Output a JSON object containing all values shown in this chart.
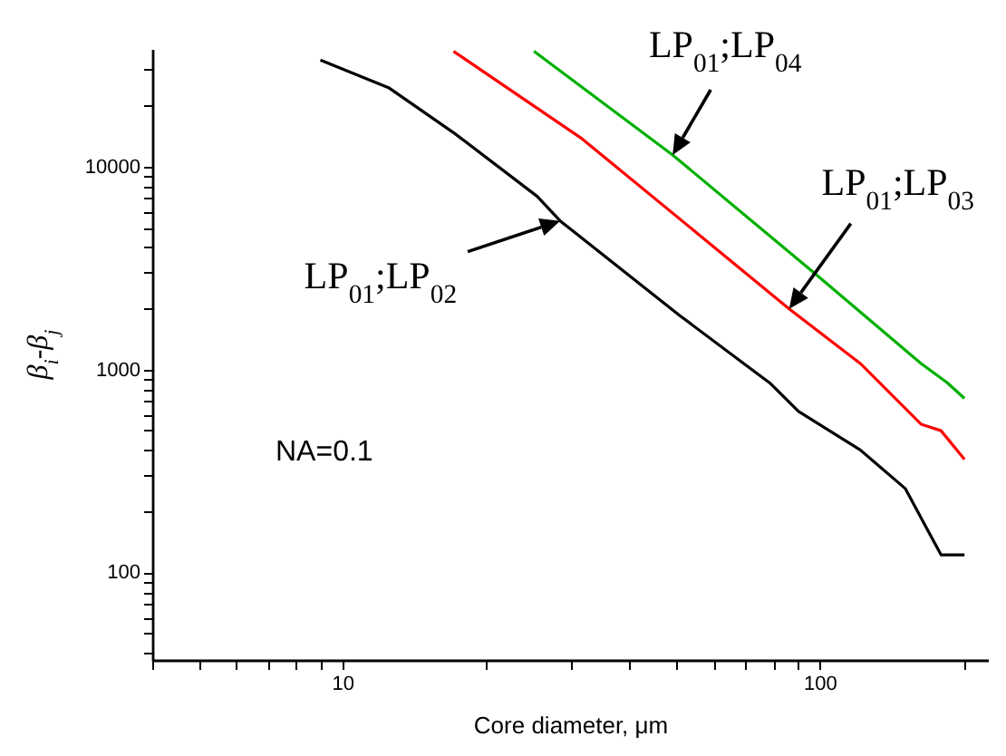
{
  "chart_data": {
    "type": "line",
    "xlabel": "Core diameter, μm",
    "ylabel": "β$_{i}$-β$_{j}$",
    "log": "xy",
    "grid": false,
    "legend": false,
    "marker": "none",
    "line_style": "solid",
    "xlim": [
      4,
      225
    ],
    "ylim": [
      37,
      38000
    ],
    "xticks": [
      {
        "value": 4,
        "label": null
      },
      {
        "value": 5,
        "label": null
      },
      {
        "value": 6,
        "label": null
      },
      {
        "value": 7,
        "label": null
      },
      {
        "value": 8,
        "label": null
      },
      {
        "value": 9,
        "label": null
      },
      10,
      {
        "value": 20,
        "label": null
      },
      {
        "value": 30,
        "label": null
      },
      {
        "value": 40,
        "label": null
      },
      {
        "value": 50,
        "label": null
      },
      {
        "value": 60,
        "label": null
      },
      {
        "value": 70,
        "label": null
      },
      {
        "value": 80,
        "label": null
      },
      {
        "value": 90,
        "label": null
      },
      100,
      {
        "value": 200,
        "label": null
      }
    ],
    "yticks": [
      {
        "value": 40,
        "label": null
      },
      {
        "value": 50,
        "label": null
      },
      {
        "value": 60,
        "label": null
      },
      {
        "value": 70,
        "label": null
      },
      {
        "value": 80,
        "label": null
      },
      {
        "value": 90,
        "label": null
      },
      100,
      {
        "value": 200,
        "label": null
      },
      {
        "value": 300,
        "label": null
      },
      {
        "value": 400,
        "label": null
      },
      {
        "value": 500,
        "label": null
      },
      {
        "value": 600,
        "label": null
      },
      {
        "value": 700,
        "label": null
      },
      {
        "value": 800,
        "label": null
      },
      {
        "value": 900,
        "label": null
      },
      1000,
      {
        "value": 2000,
        "label": null
      },
      {
        "value": 3000,
        "label": null
      },
      {
        "value": 4000,
        "label": null
      },
      {
        "value": 5000,
        "label": null
      },
      {
        "value": 6000,
        "label": null
      },
      {
        "value": 7000,
        "label": null
      },
      {
        "value": 8000,
        "label": null
      },
      {
        "value": 9000,
        "label": null
      },
      10000,
      {
        "value": 20000,
        "label": null
      },
      {
        "value": 30000,
        "label": null
      }
    ],
    "series": [
      {
        "color": "#000000",
        "x": [
          9,
          12.5,
          17.1,
          25.6,
          28.6,
          50.8,
          69.3,
          78.5,
          90.3,
          121.6,
          151,
          179.5,
          201
        ],
        "values": [
          33500,
          24500,
          14700,
          7130,
          5400,
          1850,
          1070,
          860,
          621,
          401,
          259,
          122,
          122
        ]
      },
      {
        "color": "#ff0000",
        "x": [
          17.1,
          31.8,
          86.3,
          121.6,
          163,
          179.5,
          201
        ],
        "values": [
          37000,
          13700,
          1990,
          1070,
          537,
          499,
          360
        ]
      },
      {
        "color": "#00b000",
        "x": [
          25.2,
          49.2,
          97.7,
          163,
          185,
          201
        ],
        "values": [
          37000,
          11400,
          2970,
          1070,
          860,
          720
        ]
      }
    ],
    "annotations": [
      {
        "text": "LP$_{01}$;LP$_{02}$",
        "x": 28.6,
        "y": 5400
      },
      {
        "text": "LP$_{01}$;LP$_{03}$",
        "x": 86.3,
        "y": 1990
      },
      {
        "text": "LP$_{01}$;LP$_{04}$",
        "x": 49.2,
        "y": 11400
      },
      "NA=0.1"
    ]
  }
}
